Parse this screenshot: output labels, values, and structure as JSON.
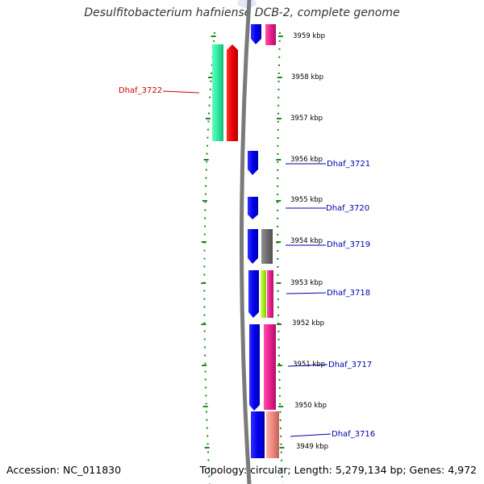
{
  "title": "Desulfitobacterium hafniense DCB-2, complete genome",
  "footer": {
    "accession": "Accession: NC_011830",
    "topology": "Topology: circular; Length: 5,279,134 bp; Genes: 4,972"
  },
  "colors": {
    "backbone": "#888888",
    "tick": "#1a8a1a",
    "forward_gene": "#0000ee",
    "label_blue": "#0000aa",
    "label_red": "#cc0000",
    "gray_feature": "#6e6e6e",
    "magenta_feature": "#e8208a",
    "green_feature": "#2ee8a0",
    "red_feature": "#ee0000",
    "lime_feature": "#aaee22",
    "salmon_feature": "#ee8880"
  },
  "scale": {
    "labels": [
      "3959 kbp",
      "3958 kbp",
      "3957 kbp",
      "3956 kbp",
      "3955 kbp",
      "3954 kbp",
      "3953 kbp",
      "3952 kbp",
      "3951 kbp",
      "3950 kbp",
      "3949 kbp"
    ]
  },
  "genes": [
    {
      "name": "Dhaf_3722",
      "color": "red"
    },
    {
      "name": "Dhaf_3721",
      "color": "blue"
    },
    {
      "name": "Dhaf_3720",
      "color": "blue"
    },
    {
      "name": "Dhaf_3719",
      "color": "blue"
    },
    {
      "name": "Dhaf_3718",
      "color": "blue"
    },
    {
      "name": "Dhaf_3717",
      "color": "blue"
    },
    {
      "name": "Dhaf_3716",
      "color": "blue"
    }
  ]
}
